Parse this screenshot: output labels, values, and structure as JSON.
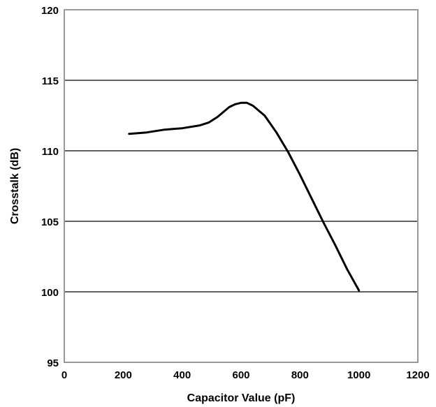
{
  "chart_data": {
    "type": "line",
    "title": "",
    "xlabel": "Capacitor Value (pF)",
    "ylabel": "Crosstalk (dB)",
    "xlim": [
      0,
      1200
    ],
    "ylim": [
      95,
      120
    ],
    "xticks": [
      0,
      200,
      400,
      600,
      800,
      1000,
      1200
    ],
    "yticks": [
      95,
      100,
      105,
      110,
      115,
      120
    ],
    "grid": "horizontal",
    "legend": "none",
    "colors": {
      "line": "#000000",
      "grid": "#000000",
      "frame": "#999999"
    },
    "series": [
      {
        "x": [
          220,
          280,
          340,
          400,
          460,
          490,
          520,
          560,
          580,
          600,
          620,
          640,
          680,
          720,
          760,
          800,
          840,
          880,
          920,
          960,
          1000
        ],
        "y": [
          111.2,
          111.3,
          111.5,
          111.6,
          111.8,
          112.0,
          112.4,
          113.1,
          113.3,
          113.4,
          113.4,
          113.2,
          112.5,
          111.3,
          109.9,
          108.3,
          106.6,
          104.9,
          103.3,
          101.6,
          100.1
        ]
      }
    ]
  }
}
